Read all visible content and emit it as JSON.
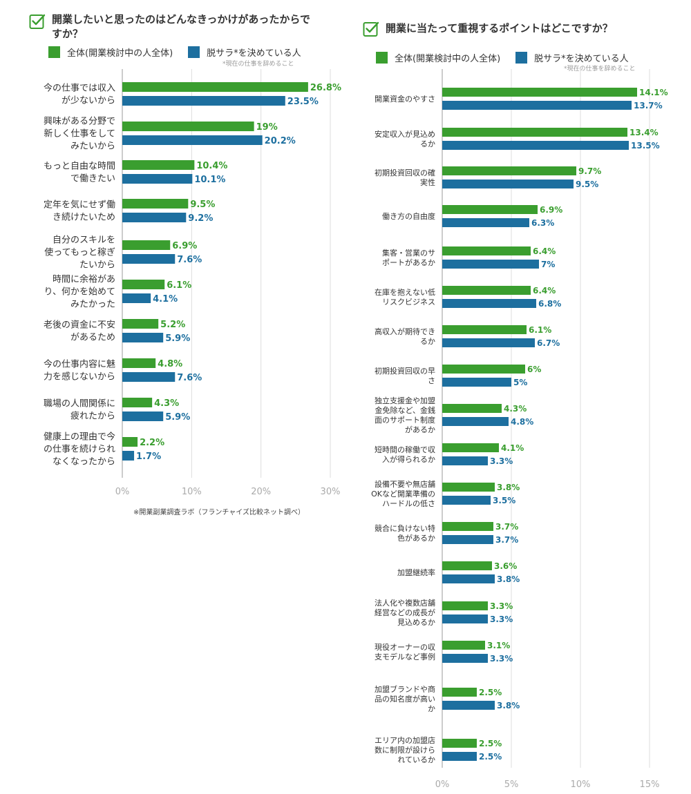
{
  "colors": {
    "green": "#3a9e2f",
    "blue": "#1d6f9f",
    "axis": "#999999",
    "grid": "#dddddd",
    "icon": "#3a9e2f"
  },
  "left": {
    "title_line1": "開業したいと思ったのはどんなきっかけがあったからで",
    "title_line2": "すか？",
    "legend": {
      "all": "全体(開業検討中の人全体)",
      "quit": "脱サラ*を決めている人"
    },
    "note": "*現在の仕事を辞めること",
    "source": "※開業副業調査ラボ（フランチャイズ比較ネット調べ）"
  },
  "right": {
    "title": "開業に当たって重視するポイントはどこですか？",
    "legend": {
      "all": "全体(開業検討中の人全体)",
      "quit": "脱サラ*を決めている人"
    },
    "note": "*現在の仕事を辞めること"
  },
  "chart_data": [
    {
      "type": "bar",
      "orientation": "horizontal",
      "title": "開業したいと思ったのはどんなきっかけがあったからですか？",
      "categories": [
        [
          "今の仕事では収入",
          "が少ないから"
        ],
        [
          "興味がある分野で",
          "新しく仕事をして",
          "みたいから"
        ],
        [
          "もっと自由な時間",
          "で働きたい"
        ],
        [
          "定年を気にせず働",
          "き続けたいため"
        ],
        [
          "自分のスキルを",
          "使ってもっと稼ぎ",
          "たいから"
        ],
        [
          "時間に余裕があ",
          "り、何かを始めて",
          "みたかった"
        ],
        [
          "老後の資金に不安",
          "があるため"
        ],
        [
          "今の仕事内容に魅",
          "力を感じないから"
        ],
        [
          "職場の人間関係に",
          "疲れたから"
        ],
        [
          "健康上の理由で今",
          "の仕事を続けられ",
          "なくなったから"
        ]
      ],
      "series": [
        {
          "name": "全体(開業検討中の人全体)",
          "values": [
            26.8,
            19,
            10.4,
            9.5,
            6.9,
            6.1,
            5.2,
            4.8,
            4.3,
            2.2
          ],
          "labels": [
            "26.8%",
            "19%",
            "10.4%",
            "9.5%",
            "6.9%",
            "6.1%",
            "5.2%",
            "4.8%",
            "4.3%",
            "2.2%"
          ]
        },
        {
          "name": "脱サラ*を決めている人",
          "values": [
            23.5,
            20.2,
            10.1,
            9.2,
            7.6,
            4.1,
            5.9,
            7.6,
            5.9,
            1.7
          ],
          "labels": [
            "23.5%",
            "20.2%",
            "10.1%",
            "9.2%",
            "7.6%",
            "4.1%",
            "5.9%",
            "7.6%",
            "5.9%",
            "1.7%"
          ]
        }
      ],
      "ticks": [
        "0%",
        "10%",
        "20%",
        "30%"
      ],
      "tick_values": [
        0,
        10,
        20,
        30
      ],
      "xlim": [
        0,
        30
      ],
      "grid": true
    },
    {
      "type": "bar",
      "orientation": "horizontal",
      "title": "開業に当たって重視するポイントはどこですか？",
      "categories": [
        [
          "開業資金のやすさ"
        ],
        [
          "安定収入が見込め",
          "るか"
        ],
        [
          "初期投資回収の確",
          "実性"
        ],
        [
          "働き方の自由度"
        ],
        [
          "集客・営業のサ",
          "ポートがあるか"
        ],
        [
          "在庫を抱えない低",
          "リスクビジネス"
        ],
        [
          "高収入が期待でき",
          "るか"
        ],
        [
          "初期投資回収の早",
          "さ"
        ],
        [
          "独立支援金や加盟",
          "金免除など、金銭",
          "面のサポート制度",
          "があるか"
        ],
        [
          "短時間の稼働で収",
          "入が得られるか"
        ],
        [
          "設備不要や無店舗",
          "OKなど開業準備の",
          "ハードルの低さ"
        ],
        [
          "競合に負けない特",
          "色があるか"
        ],
        [
          "加盟継続率"
        ],
        [
          "法人化や複数店舗",
          "経営などの成長が",
          "見込めるか"
        ],
        [
          "現役オーナーの収",
          "支モデルなど事例"
        ],
        [
          "加盟ブランドや商",
          "品の知名度が高い",
          "か"
        ],
        [
          "エリア内の加盟店",
          "数に制限が設けら",
          "れているか"
        ]
      ],
      "series": [
        {
          "name": "全体(開業検討中の人全体)",
          "values": [
            14.1,
            13.4,
            9.7,
            6.9,
            6.4,
            6.4,
            6.1,
            6,
            4.3,
            4.1,
            3.8,
            3.7,
            3.6,
            3.3,
            3.1,
            2.5,
            2.5
          ],
          "labels": [
            "14.1%",
            "13.4%",
            "9.7%",
            "6.9%",
            "6.4%",
            "6.4%",
            "6.1%",
            "6%",
            "4.3%",
            "4.1%",
            "3.8%",
            "3.7%",
            "3.6%",
            "3.3%",
            "3.1%",
            "2.5%",
            "2.5%"
          ]
        },
        {
          "name": "脱サラ*を決めている人",
          "values": [
            13.7,
            13.5,
            9.5,
            6.3,
            7,
            6.8,
            6.7,
            5,
            4.8,
            3.3,
            3.5,
            3.7,
            3.8,
            3.3,
            3.3,
            3.8,
            2.5
          ],
          "labels": [
            "13.7%",
            "13.5%",
            "9.5%",
            "6.3%",
            "7%",
            "6.8%",
            "6.7%",
            "5%",
            "4.8%",
            "3.3%",
            "3.5%",
            "3.7%",
            "3.8%",
            "3.3%",
            "3.3%",
            "3.8%",
            "2.5%"
          ]
        }
      ],
      "ticks": [
        "0%",
        "5%",
        "10%",
        "15%"
      ],
      "tick_values": [
        0,
        5,
        10,
        15
      ],
      "xlim": [
        0,
        15
      ],
      "grid": true
    }
  ]
}
